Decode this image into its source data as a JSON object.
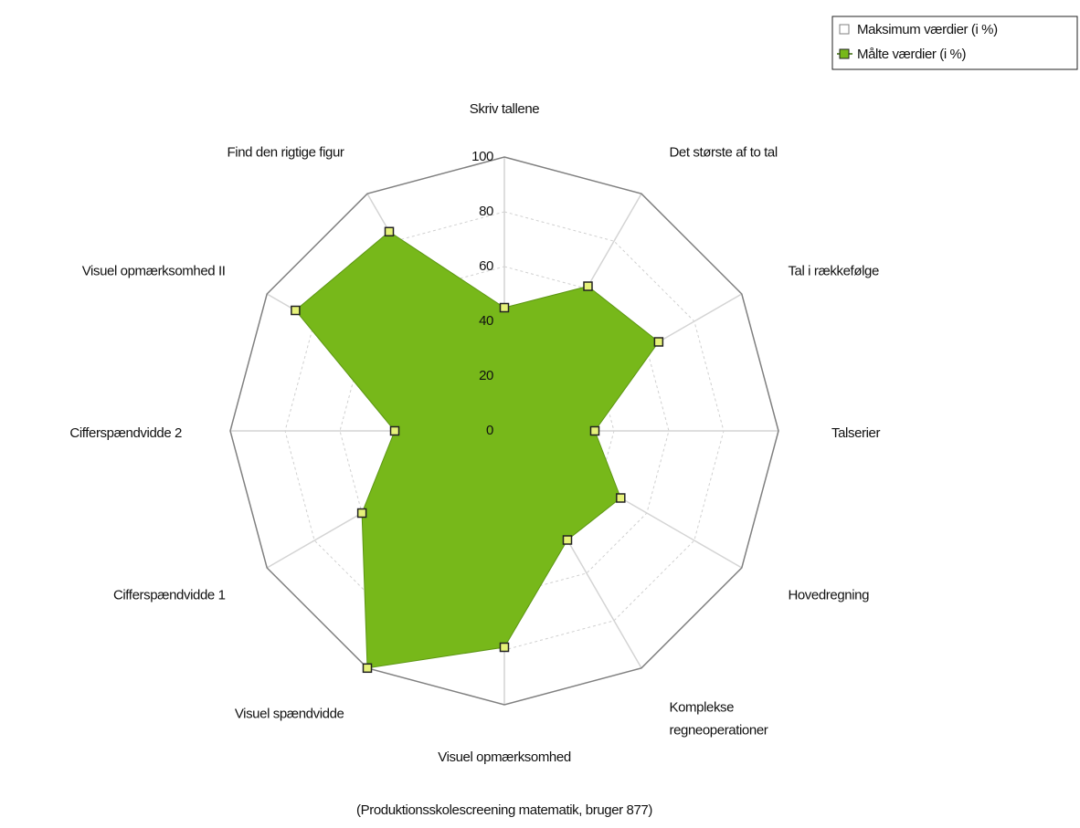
{
  "chart_data": {
    "type": "radar",
    "caption": "(Produktionsskolescreening matematik, bruger 877)",
    "categories": [
      "Skriv tallene",
      "Det største af to tal",
      "Tal i rækkefølge",
      "Talserier",
      "Hovedregning",
      "Komplekse\nregneoperationer",
      "Visuel opmærksomhed",
      "Visuel spændvidde",
      "Cifferspændvidde 1",
      "Cifferspændvidde 2",
      "Visuel opmærksomhed II",
      "Find den rigtige figur"
    ],
    "series": [
      {
        "name": "Maksimum værdier (i %)",
        "color": "#808080",
        "values": [
          100,
          100,
          100,
          100,
          100,
          100,
          100,
          100,
          100,
          100,
          100,
          100
        ]
      },
      {
        "name": "Målte værdier (i %)",
        "color": "#77b81a",
        "values": [
          45,
          61,
          65,
          33,
          49,
          46,
          79,
          100,
          60,
          40,
          88,
          84
        ]
      }
    ],
    "ylim": [
      0,
      100
    ],
    "yticks": [
      0,
      20,
      40,
      60,
      80,
      100
    ],
    "grid": true,
    "legend": "top-right"
  }
}
